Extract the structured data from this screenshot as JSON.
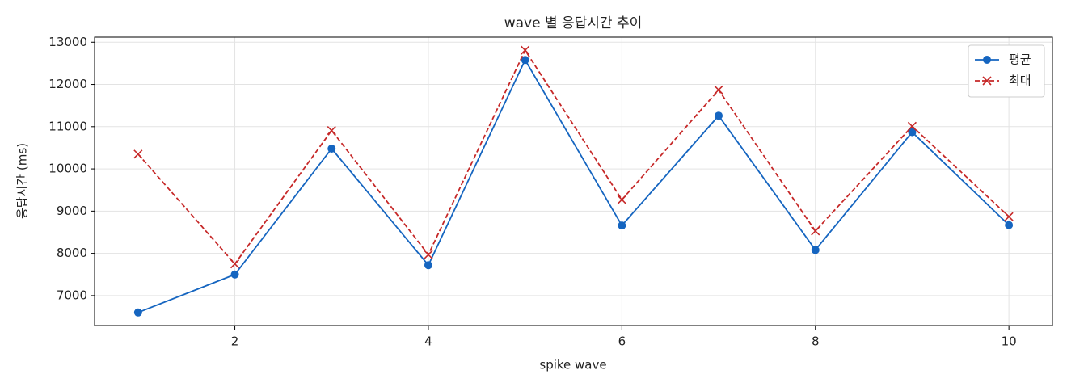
{
  "chart_data": {
    "type": "line",
    "title": "wave 별 응답시간 추이",
    "xlabel": "spike wave",
    "ylabel": "응답시간 (ms)",
    "x": [
      1,
      2,
      3,
      4,
      5,
      6,
      7,
      8,
      9,
      10
    ],
    "series": [
      {
        "name": "평균",
        "color": "#1565c0",
        "marker": "circle",
        "linestyle": "solid",
        "values": [
          6600,
          7500,
          10480,
          7720,
          12580,
          8660,
          11260,
          8080,
          10870,
          8670
        ]
      },
      {
        "name": "최대",
        "color": "#c62828",
        "marker": "x",
        "linestyle": "dashed",
        "values": [
          10350,
          7750,
          10910,
          7970,
          12810,
          9270,
          11870,
          8530,
          11010,
          8870
        ]
      }
    ],
    "xlim": [
      0.55,
      10.45
    ],
    "xticks": [
      2,
      4,
      6,
      8,
      10
    ],
    "ylim": [
      6290,
      13120
    ],
    "yticks": [
      7000,
      8000,
      9000,
      10000,
      11000,
      12000,
      13000
    ],
    "grid": true,
    "legend": "upper right"
  }
}
